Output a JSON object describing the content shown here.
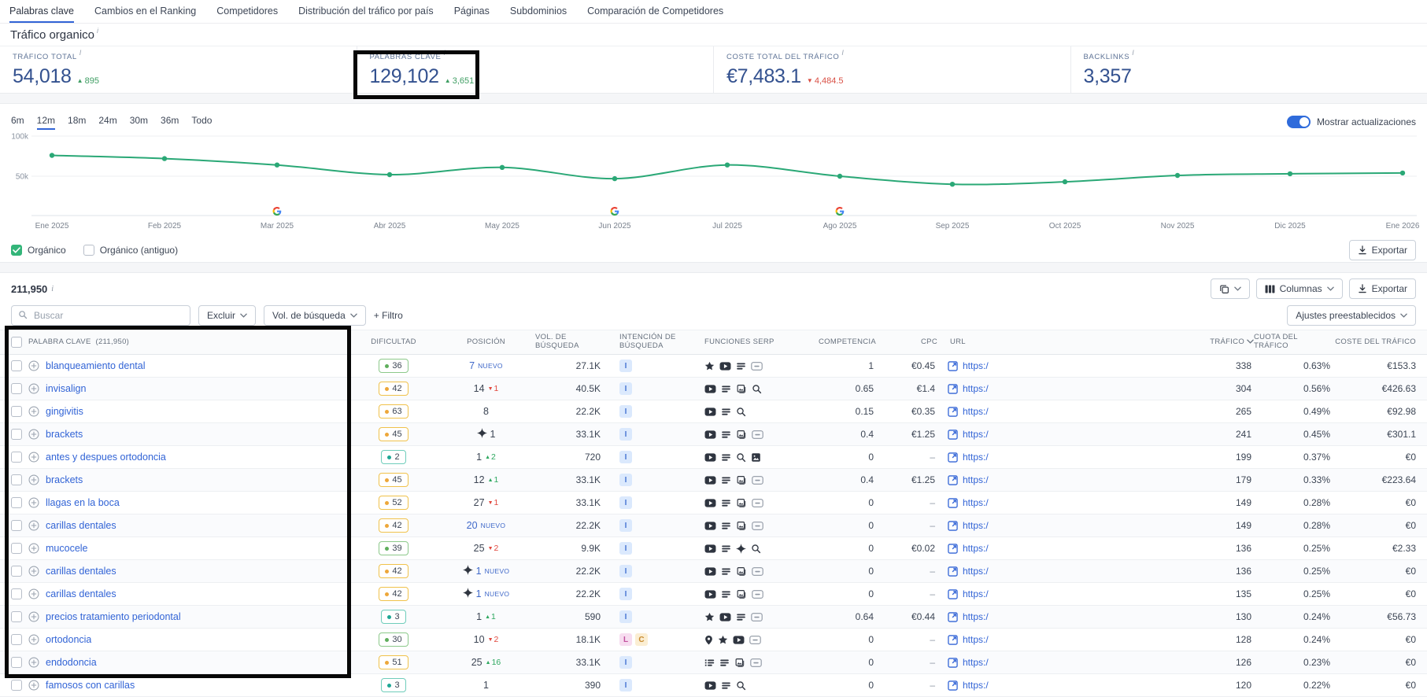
{
  "nav": {
    "tabs": [
      {
        "label": "Palabras clave",
        "active": true
      },
      {
        "label": "Cambios en el Ranking",
        "active": false
      },
      {
        "label": "Competidores",
        "active": false
      },
      {
        "label": "Distribución del tráfico por país",
        "active": false
      },
      {
        "label": "Páginas",
        "active": false
      },
      {
        "label": "Subdominios",
        "active": false
      },
      {
        "label": "Comparación de Competidores",
        "active": false
      }
    ]
  },
  "page": {
    "title": "Tráfico organico"
  },
  "metrics": [
    {
      "label": "TRÁFICO TOTAL",
      "value": "54,018",
      "delta": "895",
      "delta_dir": "up"
    },
    {
      "label": "PALABRAS CLAVE",
      "value": "129,102",
      "delta": "3,651",
      "delta_dir": "up",
      "highlighted": true
    },
    {
      "label": "COSTE TOTAL DEL TRÁFICO",
      "value": "€7,483.1",
      "delta": "4,484.5",
      "delta_dir": "down"
    },
    {
      "label": "BACKLINKS",
      "value": "3,357",
      "delta": null
    }
  ],
  "chart_controls": {
    "ranges": [
      "6m",
      "12m",
      "18m",
      "24m",
      "30m",
      "36m",
      "Todo"
    ],
    "active_range": "12m",
    "toggle_label": "Mostrar actualizaciones",
    "export_label": "Exportar",
    "legend": [
      {
        "label": "Orgánico",
        "checked": true
      },
      {
        "label": "Orgánico (antiguo)",
        "checked": false
      }
    ]
  },
  "chart_data": {
    "type": "line",
    "title": "Tráfico organico",
    "x": [
      "Ene 2025",
      "Feb 2025",
      "Mar 2025",
      "Abr 2025",
      "May 2025",
      "Jun 2025",
      "Jul 2025",
      "Ago 2025",
      "Sep 2025",
      "Oct 2025",
      "Nov 2025",
      "Dic 2025",
      "Ene 2026"
    ],
    "series": [
      {
        "name": "Orgánico",
        "color": "#2aa876",
        "values": [
          76000,
          72000,
          64000,
          52000,
          61000,
          47000,
          64000,
          50000,
          40000,
          43000,
          51000,
          53000,
          54018
        ]
      }
    ],
    "ylim": [
      0,
      100000
    ],
    "yticks": [
      {
        "value": 50000,
        "label": "50k"
      },
      {
        "value": 100000,
        "label": "100k"
      }
    ],
    "grid": true,
    "legend_position": "bottom-left",
    "google_update_markers": [
      "Mar 2025",
      "Jun 2025",
      "Ago 2025"
    ]
  },
  "toolbar": {
    "count": "211,950",
    "columns_label": "Columnas",
    "export_label": "Exportar",
    "presets_label": "Ajustes preestablecidos"
  },
  "filters": {
    "search_placeholder": "Buscar",
    "exclude_label": "Excluir",
    "volume_label": "Vol. de búsqueda",
    "add_filter_label": "+ Filtro"
  },
  "table": {
    "headers": {
      "keyword": "PALABRA CLAVE",
      "keyword_count": "(211,950)",
      "difficulty": "DIFICULTAD",
      "position": "POSICIÓN",
      "volume": "VOL. DE BÚSQUEDA",
      "intent": "INTENCIÓN DE BÚSQUEDA",
      "serp": "FUNCIONES SERP",
      "competition": "COMPETENCIA",
      "cpc": "CPC",
      "url": "URL",
      "traffic": "TRÁFICO",
      "share": "CUOTA DEL TRÁFICO",
      "cost": "COSTE DEL TRÁFICO"
    },
    "rows": [
      {
        "keyword": "blanqueamiento dental",
        "kd": "36",
        "kd_level": "green",
        "pos": "7",
        "pos_new": true,
        "pos_featured": false,
        "pos_change": null,
        "volume": "27.1K",
        "intents": [
          {
            "label": "I",
            "type": "informational"
          }
        ],
        "serp_features": [
          "star",
          "video",
          "sitelinks",
          "more"
        ],
        "competition": "1",
        "cpc": "€0.45",
        "url": "https:/",
        "traffic": "338",
        "share": "0.63%",
        "cost": "€153.3"
      },
      {
        "keyword": "invisalign",
        "kd": "42",
        "kd_level": "yellow",
        "pos": "14",
        "pos_new": false,
        "pos_featured": false,
        "pos_change": {
          "dir": "down",
          "value": "1"
        },
        "volume": "40.5K",
        "intents": [
          {
            "label": "I",
            "type": "informational"
          }
        ],
        "serp_features": [
          "video",
          "sitelinks",
          "image-pack",
          "search"
        ],
        "competition": "0.65",
        "cpc": "€1.4",
        "url": "https:/",
        "traffic": "304",
        "share": "0.56%",
        "cost": "€426.63"
      },
      {
        "keyword": "gingivitis",
        "kd": "63",
        "kd_level": "yellow",
        "pos": "8",
        "pos_new": false,
        "pos_featured": false,
        "pos_change": null,
        "volume": "22.2K",
        "intents": [
          {
            "label": "I",
            "type": "informational"
          }
        ],
        "serp_features": [
          "video",
          "sitelinks",
          "search"
        ],
        "competition": "0.15",
        "cpc": "€0.35",
        "url": "https:/",
        "traffic": "265",
        "share": "0.49%",
        "cost": "€92.98"
      },
      {
        "keyword": "brackets",
        "kd": "45",
        "kd_level": "yellow",
        "pos": "1",
        "pos_new": false,
        "pos_featured": true,
        "pos_change": null,
        "volume": "33.1K",
        "intents": [
          {
            "label": "I",
            "type": "informational"
          }
        ],
        "serp_features": [
          "video",
          "sitelinks",
          "image-pack",
          "more"
        ],
        "competition": "0.4",
        "cpc": "€1.25",
        "url": "https:/",
        "traffic": "241",
        "share": "0.45%",
        "cost": "€301.1"
      },
      {
        "keyword": "antes y despues ortodoncia",
        "kd": "2",
        "kd_level": "teal",
        "pos": "1",
        "pos_new": false,
        "pos_featured": false,
        "pos_change": {
          "dir": "up",
          "value": "2"
        },
        "volume": "720",
        "intents": [
          {
            "label": "I",
            "type": "informational"
          }
        ],
        "serp_features": [
          "video",
          "sitelinks",
          "search",
          "image"
        ],
        "competition": "0",
        "cpc": "–",
        "url": "https:/",
        "traffic": "199",
        "share": "0.37%",
        "cost": "€0"
      },
      {
        "keyword": "brackets",
        "kd": "45",
        "kd_level": "yellow",
        "pos": "12",
        "pos_new": false,
        "pos_featured": false,
        "pos_change": {
          "dir": "up",
          "value": "1"
        },
        "volume": "33.1K",
        "intents": [
          {
            "label": "I",
            "type": "informational"
          }
        ],
        "serp_features": [
          "video",
          "sitelinks",
          "image-pack",
          "more"
        ],
        "competition": "0.4",
        "cpc": "€1.25",
        "url": "https:/",
        "traffic": "179",
        "share": "0.33%",
        "cost": "€223.64"
      },
      {
        "keyword": "llagas en la boca",
        "kd": "52",
        "kd_level": "yellow",
        "pos": "27",
        "pos_new": false,
        "pos_featured": false,
        "pos_change": {
          "dir": "down",
          "value": "1"
        },
        "volume": "33.1K",
        "intents": [
          {
            "label": "I",
            "type": "informational"
          }
        ],
        "serp_features": [
          "video",
          "sitelinks",
          "image-pack",
          "more"
        ],
        "competition": "0",
        "cpc": "–",
        "url": "https:/",
        "traffic": "149",
        "share": "0.28%",
        "cost": "€0"
      },
      {
        "keyword": "carillas dentales",
        "kd": "42",
        "kd_level": "yellow",
        "pos": "20",
        "pos_new": true,
        "pos_featured": false,
        "pos_change": null,
        "volume": "22.2K",
        "intents": [
          {
            "label": "I",
            "type": "informational"
          }
        ],
        "serp_features": [
          "video",
          "sitelinks",
          "image-pack",
          "more"
        ],
        "competition": "0",
        "cpc": "–",
        "url": "https:/",
        "traffic": "149",
        "share": "0.28%",
        "cost": "€0"
      },
      {
        "keyword": "mucocele",
        "kd": "39",
        "kd_level": "green",
        "pos": "25",
        "pos_new": false,
        "pos_featured": false,
        "pos_change": {
          "dir": "down",
          "value": "2"
        },
        "volume": "9.9K",
        "intents": [
          {
            "label": "I",
            "type": "informational"
          }
        ],
        "serp_features": [
          "video",
          "sitelinks",
          "featured-snippet",
          "search"
        ],
        "competition": "0",
        "cpc": "€0.02",
        "url": "https:/",
        "traffic": "136",
        "share": "0.25%",
        "cost": "€2.33"
      },
      {
        "keyword": "carillas dentales",
        "kd": "42",
        "kd_level": "yellow",
        "pos": "1",
        "pos_new": true,
        "pos_featured": true,
        "pos_change": null,
        "volume": "22.2K",
        "intents": [
          {
            "label": "I",
            "type": "informational"
          }
        ],
        "serp_features": [
          "video",
          "sitelinks",
          "image-pack",
          "more"
        ],
        "competition": "0",
        "cpc": "–",
        "url": "https:/",
        "traffic": "136",
        "share": "0.25%",
        "cost": "€0"
      },
      {
        "keyword": "carillas dentales",
        "kd": "42",
        "kd_level": "yellow",
        "pos": "1",
        "pos_new": true,
        "pos_featured": true,
        "pos_change": null,
        "volume": "22.2K",
        "intents": [
          {
            "label": "I",
            "type": "informational"
          }
        ],
        "serp_features": [
          "video",
          "sitelinks",
          "image-pack",
          "more"
        ],
        "competition": "0",
        "cpc": "–",
        "url": "https:/",
        "traffic": "135",
        "share": "0.25%",
        "cost": "€0"
      },
      {
        "keyword": "precios tratamiento periodontal",
        "kd": "3",
        "kd_level": "teal",
        "pos": "1",
        "pos_new": false,
        "pos_featured": false,
        "pos_change": {
          "dir": "up",
          "value": "1"
        },
        "volume": "590",
        "intents": [
          {
            "label": "I",
            "type": "informational"
          }
        ],
        "serp_features": [
          "star",
          "video",
          "sitelinks",
          "more"
        ],
        "competition": "0.64",
        "cpc": "€0.44",
        "url": "https:/",
        "traffic": "130",
        "share": "0.24%",
        "cost": "€56.73"
      },
      {
        "keyword": "ortodoncia",
        "kd": "30",
        "kd_level": "green",
        "pos": "10",
        "pos_new": false,
        "pos_featured": false,
        "pos_change": {
          "dir": "down",
          "value": "2"
        },
        "volume": "18.1K",
        "intents": [
          {
            "label": "L",
            "type": "local"
          },
          {
            "label": "C",
            "type": "commercial"
          }
        ],
        "serp_features": [
          "local-pack",
          "star",
          "video",
          "more"
        ],
        "competition": "0",
        "cpc": "–",
        "url": "https:/",
        "traffic": "128",
        "share": "0.24%",
        "cost": "€0"
      },
      {
        "keyword": "endodoncia",
        "kd": "51",
        "kd_level": "yellow",
        "pos": "25",
        "pos_new": false,
        "pos_featured": false,
        "pos_change": {
          "dir": "up",
          "value": "16"
        },
        "volume": "33.1K",
        "intents": [
          {
            "label": "I",
            "type": "informational"
          }
        ],
        "serp_features": [
          "list",
          "sitelinks",
          "image-pack",
          "more"
        ],
        "competition": "0",
        "cpc": "–",
        "url": "https:/",
        "traffic": "126",
        "share": "0.23%",
        "cost": "€0"
      },
      {
        "keyword": "famosos con carillas",
        "kd": "3",
        "kd_level": "teal",
        "pos": "1",
        "pos_new": false,
        "pos_featured": false,
        "pos_change": null,
        "volume": "390",
        "intents": [
          {
            "label": "I",
            "type": "informational"
          }
        ],
        "serp_features": [
          "video",
          "sitelinks",
          "search"
        ],
        "competition": "0",
        "cpc": "–",
        "url": "https:/",
        "traffic": "120",
        "share": "0.22%",
        "cost": "€0"
      }
    ]
  }
}
